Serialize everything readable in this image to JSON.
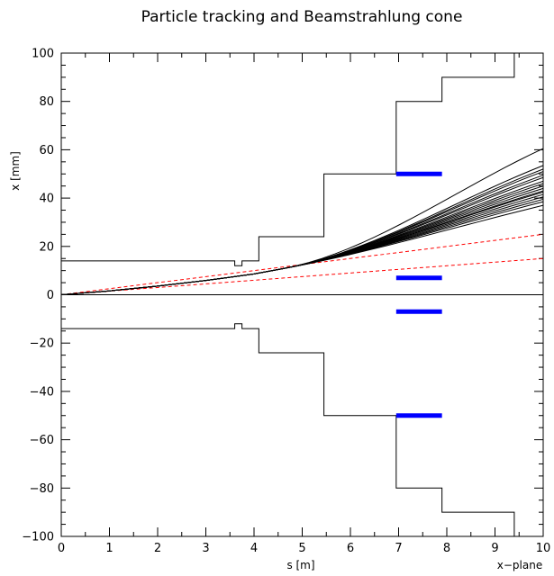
{
  "chart_data": {
    "type": "line",
    "title": "Particle tracking and Beamstrahlung cone",
    "xlabel": "s [m]",
    "ylabel": "x [mm]",
    "corner_label": "x−plane",
    "xlim": [
      0,
      10
    ],
    "ylim": [
      -100,
      100
    ],
    "x_ticks": [
      0,
      1,
      2,
      3,
      4,
      5,
      6,
      7,
      8,
      9,
      10
    ],
    "y_ticks": [
      -100,
      -80,
      -60,
      -40,
      -20,
      0,
      20,
      40,
      60,
      80,
      100
    ],
    "grid": false,
    "colors": {
      "tracks": "#000000",
      "cone": "#ff0000",
      "markers": "#0000ff",
      "aperture": "#000000"
    },
    "aperture_upper": [
      [
        0,
        14
      ],
      [
        3.6,
        14
      ],
      [
        3.6,
        12
      ],
      [
        3.75,
        12
      ],
      [
        3.75,
        14
      ],
      [
        4.1,
        14
      ],
      [
        4.1,
        24
      ],
      [
        5.45,
        24
      ],
      [
        5.45,
        50
      ],
      [
        6.95,
        50
      ],
      [
        6.95,
        80
      ],
      [
        7.9,
        80
      ],
      [
        7.9,
        90
      ],
      [
        9.4,
        90
      ],
      [
        9.4,
        100
      ]
    ],
    "aperture_lower": [
      [
        0,
        -14
      ],
      [
        3.6,
        -14
      ],
      [
        3.6,
        -12
      ],
      [
        3.75,
        -12
      ],
      [
        3.75,
        -14
      ],
      [
        4.1,
        -14
      ],
      [
        4.1,
        -24
      ],
      [
        5.45,
        -24
      ],
      [
        5.45,
        -50
      ],
      [
        6.95,
        -50
      ],
      [
        6.95,
        -80
      ],
      [
        7.9,
        -80
      ],
      [
        7.9,
        -90
      ],
      [
        9.4,
        -90
      ],
      [
        9.4,
        -100
      ]
    ],
    "axis_line_y": 0,
    "tracks": {
      "shared_points": [
        [
          0,
          0
        ],
        [
          1,
          1.6
        ],
        [
          2,
          3.6
        ],
        [
          3,
          5.9
        ],
        [
          4,
          8.6
        ],
        [
          4.6,
          10.8
        ]
      ],
      "x_end": 10,
      "end_values": [
        60.5,
        53.5,
        52,
        51,
        49.5,
        48.5,
        47,
        46,
        45,
        44,
        43,
        42.5,
        41.5,
        40.5,
        39.5,
        38.5,
        37
      ]
    },
    "beamstrahlung_cone": [
      {
        "points": [
          [
            0,
            0
          ],
          [
            10,
            25
          ]
        ]
      },
      {
        "points": [
          [
            0,
            0
          ],
          [
            10,
            15
          ]
        ]
      }
    ],
    "markers": [
      {
        "x": [
          6.95,
          7.9
        ],
        "y": 50
      },
      {
        "x": [
          6.95,
          7.9
        ],
        "y": 7
      },
      {
        "x": [
          6.95,
          7.9
        ],
        "y": -7
      },
      {
        "x": [
          6.95,
          7.9
        ],
        "y": -50
      }
    ]
  }
}
